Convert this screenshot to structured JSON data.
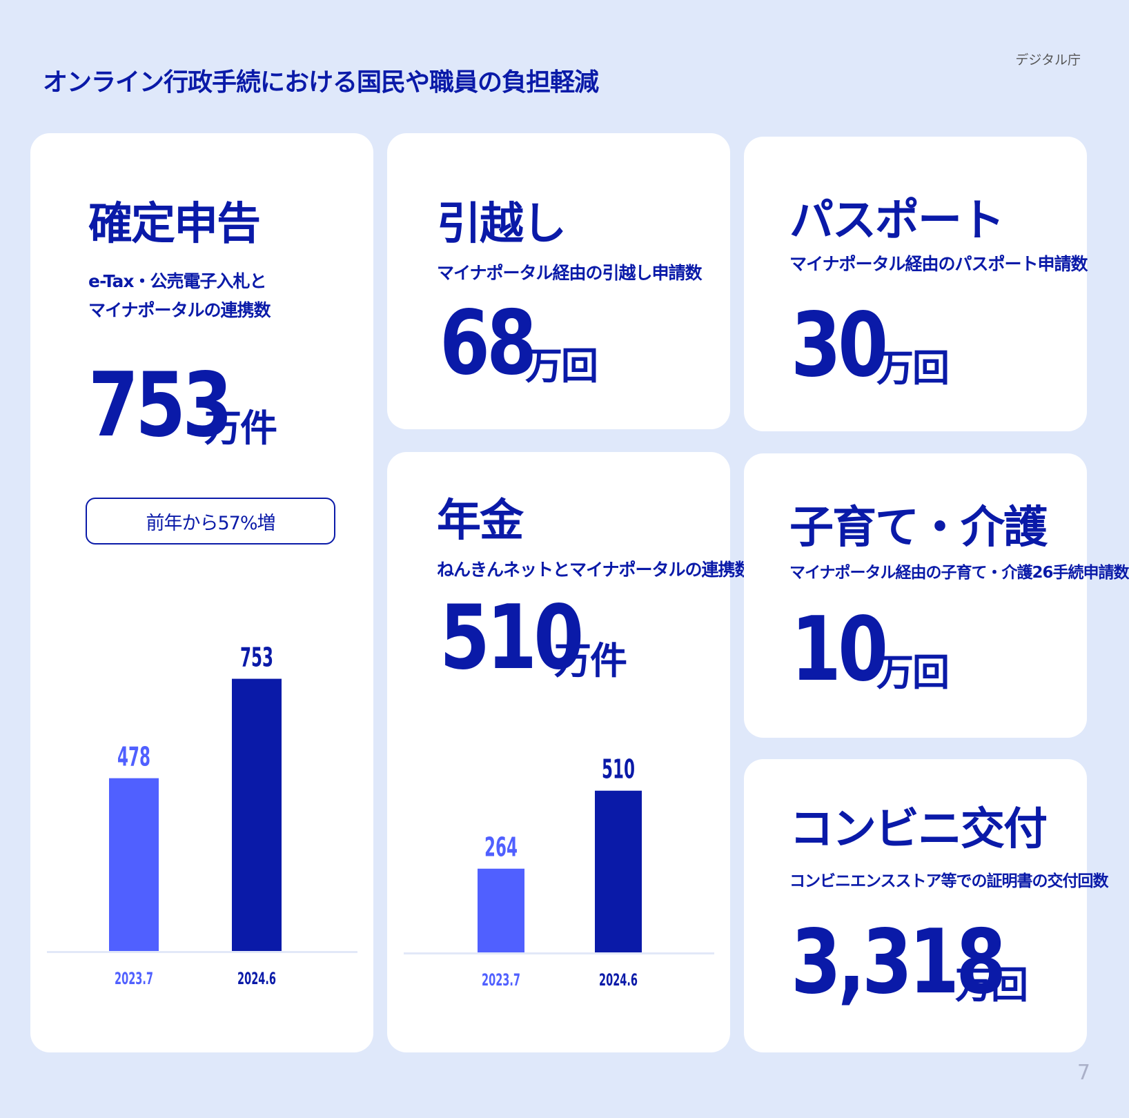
{
  "header": {
    "title": "オンライン行政手続における国民や職員の負担軽減",
    "logo_text": "デジタル庁",
    "page_number": "7"
  },
  "colors": {
    "background": "#dfe8fa",
    "card": "#ffffff",
    "primary": "#0a1aa8",
    "bar_prev": "#5060ff",
    "bar_curr": "#0a1aa8",
    "baseline": "#e2e8f8"
  },
  "cards": {
    "tax": {
      "title": "確定申告",
      "sub_line1": "e-Tax・公売電子入札と",
      "sub_line2": "マイナポータルの連携数",
      "value": "753",
      "unit": "万件",
      "badge": "前年から57%増"
    },
    "moving": {
      "title": "引越し",
      "sub": "マイナポータル経由の引越し申請数",
      "value": "68",
      "unit": "万回"
    },
    "passport": {
      "title": "パスポート",
      "sub": "マイナポータル経由のパスポート申請数",
      "value": "30",
      "unit": "万回"
    },
    "pension": {
      "title": "年金",
      "sub": "ねんきんネットとマイナポータルの連携数",
      "value": "510",
      "unit": "万件"
    },
    "childcare": {
      "title": "子育て・介護",
      "sub": "マイナポータル経由の子育て・介護26手続申請数",
      "value": "10",
      "unit": "万回"
    },
    "conbini": {
      "title": "コンビニ交付",
      "sub": "コンビニエンスストア等での証明書の交付回数",
      "value": "3,318",
      "unit": "万回"
    }
  },
  "chart_data": [
    {
      "type": "bar",
      "categories": [
        "2023.7",
        "2024.6"
      ],
      "values": [
        478,
        753
      ],
      "data_labels": [
        "478",
        "753"
      ],
      "colors": [
        "#5060ff",
        "#0a1aa8"
      ],
      "title": "",
      "xlabel": "",
      "ylabel": "",
      "ylim": [
        0,
        840
      ],
      "grid": false
    },
    {
      "type": "bar",
      "categories": [
        "2023.7",
        "2024.6"
      ],
      "values": [
        264,
        510
      ],
      "data_labels": [
        "264",
        "510"
      ],
      "colors": [
        "#5060ff",
        "#0a1aa8"
      ],
      "title": "",
      "xlabel": "",
      "ylabel": "",
      "ylim": [
        0,
        566
      ],
      "grid": false
    }
  ]
}
